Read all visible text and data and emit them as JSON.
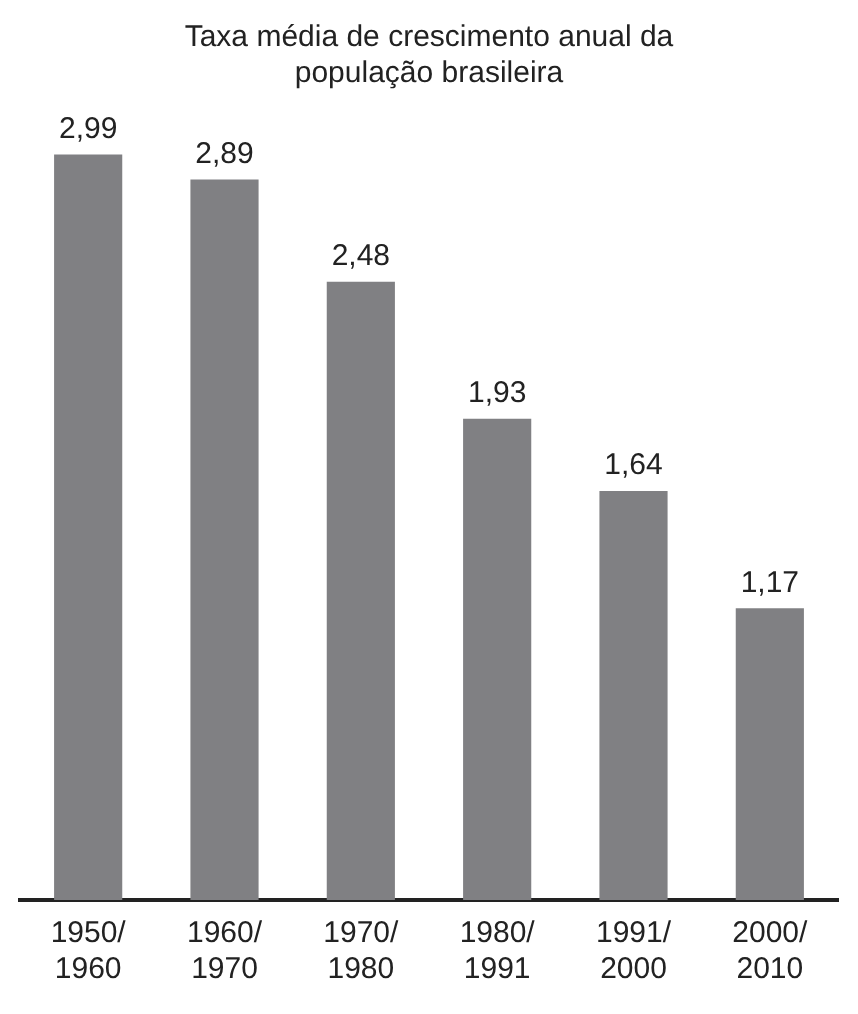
{
  "chart_data": {
    "type": "bar",
    "title": "Taxa média de crescimento anual da\npopulação brasileira",
    "categories": [
      "1950/\n1960",
      "1960/\n1970",
      "1970/\n1980",
      "1980/\n1991",
      "1991/\n2000",
      "2000/\n2010"
    ],
    "values": [
      2.99,
      2.89,
      2.48,
      1.93,
      1.64,
      1.17
    ],
    "value_labels": [
      "2,99",
      "2,89",
      "2,48",
      "1,93",
      "1,64",
      "1,17"
    ],
    "color": "#808083",
    "grid": false,
    "legend": false
  }
}
